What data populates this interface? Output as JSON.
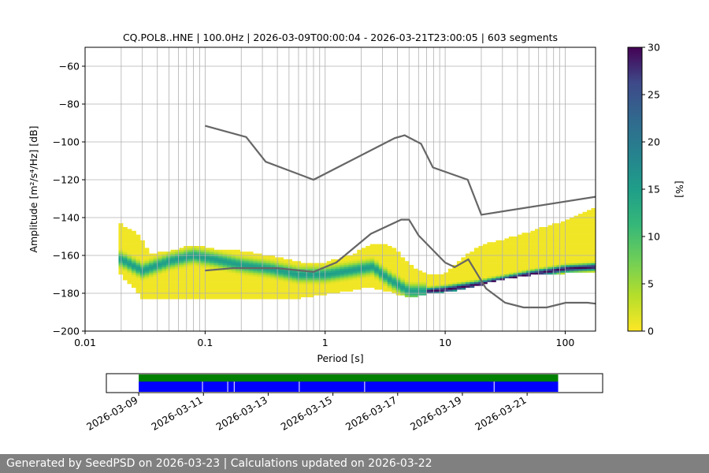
{
  "chart_data": [
    {
      "type": "heatmap",
      "title": "CQ.POL8..HNE | 100.0Hz | 2026-03-09T00:00:04 - 2026-03-21T23:00:05 | 603 segments",
      "xlabel": "Period [s]",
      "ylabel": "Amplitude [m²/s⁴/Hz] [dB]",
      "x_scale": "log",
      "xlim": [
        0.01,
        179
      ],
      "ylim": [
        -200,
        -50
      ],
      "x_ticks": [
        "0.01",
        "0.1",
        "1",
        "10",
        "100"
      ],
      "y_ticks": [
        "−200",
        "−180",
        "−160",
        "−140",
        "−120",
        "−100",
        "−80",
        "−60"
      ],
      "grid": true,
      "colorbar": {
        "label": "[%]",
        "range": [
          0,
          30
        ],
        "ticks": [
          "0",
          "5",
          "10",
          "15",
          "20",
          "25",
          "30"
        ],
        "colormap": "viridis_r"
      },
      "mode_curve": {
        "period": [
          0.02,
          0.03,
          0.05,
          0.08,
          0.12,
          0.2,
          0.35,
          0.6,
          1.0,
          1.6,
          2.5,
          3.5,
          5,
          7,
          10,
          20,
          50,
          100,
          179
        ],
        "db": [
          -162,
          -168,
          -163,
          -160,
          -162,
          -165,
          -167,
          -170,
          -170,
          -168,
          -166,
          -173,
          -179,
          -179,
          -178,
          -175,
          -170,
          -167,
          -166
        ]
      },
      "psd_spread": {
        "period": [
          0.019,
          0.021,
          0.025,
          0.03,
          0.035,
          0.05,
          0.08,
          0.12,
          0.2,
          0.3,
          0.45,
          0.6,
          0.8,
          1.0,
          1.3,
          1.7,
          2.0,
          2.5,
          3.0,
          3.5,
          4.0,
          4.5,
          5.0,
          6.0,
          7.0,
          8.0,
          10,
          15,
          20,
          30,
          50,
          100,
          179
        ],
        "upper_db": [
          -142,
          -145,
          -147,
          -152,
          -160,
          -158,
          -155,
          -157,
          -158,
          -160,
          -162,
          -164,
          -165,
          -164,
          -162,
          -160,
          -157,
          -154,
          -154,
          -156,
          -158,
          -162,
          -165,
          -168,
          -170,
          -170,
          -170,
          -160,
          -155,
          -152,
          -148,
          -142,
          -135
        ],
        "lower_db": [
          -168,
          -172,
          -176,
          -182,
          -183,
          -182,
          -183,
          -183,
          -183,
          -183,
          -183,
          -182,
          -181,
          -180,
          -179,
          -178,
          -177,
          -177,
          -178,
          -179,
          -180,
          -181,
          -182,
          -181,
          -180,
          -180,
          -179,
          -177,
          -175,
          -172,
          -170,
          -169,
          -168
        ]
      },
      "noise_models": {
        "upper": {
          "period": [
            0.1,
            0.22,
            0.32,
            0.8,
            3.8,
            4.6,
            6.3,
            7.9,
            15.4,
            20,
            179
          ],
          "db": [
            -91.5,
            -97.4,
            -110.5,
            -120,
            -98,
            -96.5,
            -101,
            -113.5,
            -120,
            -138.5,
            -129
          ]
        },
        "lower": {
          "period": [
            0.1,
            0.17,
            0.4,
            0.8,
            1.24,
            2.4,
            4.3,
            5.0,
            6.0,
            10,
            12,
            15.6,
            21.9,
            31.6,
            45,
            70,
            101,
            154,
            179
          ],
          "db": [
            -168,
            -166.7,
            -166.7,
            -168.7,
            -163.7,
            -148.6,
            -141.1,
            -141.1,
            -149.4,
            -163.8,
            -166.2,
            -162.1,
            -177.5,
            -185,
            -187.5,
            -187.5,
            -185,
            -185,
            -185.5
          ]
        }
      }
    },
    {
      "type": "timeline",
      "x_ticks": [
        "2026-03-09",
        "2026-03-11",
        "2026-03-13",
        "2026-03-15",
        "2026-03-17",
        "2026-03-19",
        "2026-03-21"
      ],
      "start": "2026-03-09",
      "end": "2026-03-21",
      "data_bar_color": "#0000ff",
      "coverage_bar_color": "#008000",
      "gaps_days": [
        1.97,
        2.75,
        2.95,
        4.96,
        6.98,
        10.98
      ]
    }
  ],
  "footer": {
    "text": "Generated by SeedPSD on 2026-03-23 | Calculations updated on 2026-03-22"
  }
}
